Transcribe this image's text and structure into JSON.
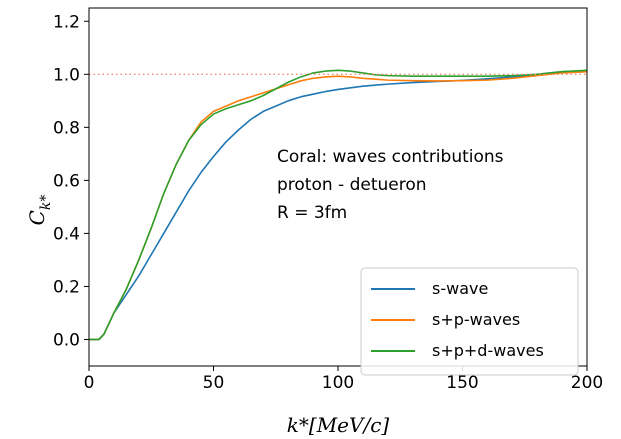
{
  "chart_data": {
    "type": "line",
    "xlabel": "k*[MeV/c]",
    "ylabel_main": "C",
    "ylabel_sub": "k*",
    "xlim": [
      0,
      200
    ],
    "ylim": [
      -0.1,
      1.25
    ],
    "xticks": [
      0,
      50,
      100,
      150,
      200
    ],
    "xtick_labels": [
      "0",
      "50",
      "100",
      "150",
      "200"
    ],
    "yticks": [
      0.0,
      0.2,
      0.4,
      0.6,
      0.8,
      1.0,
      1.2
    ],
    "ytick_labels": [
      "0.0",
      "0.2",
      "0.4",
      "0.6",
      "0.8",
      "1.0",
      "1.2"
    ],
    "grid": false,
    "legend_position": "lower-right",
    "annotation_lines": [
      "Coral: waves contributions",
      "proton - detueron",
      "R = 3fm"
    ],
    "reference_line": {
      "y": 1.0,
      "color": "#f08a70",
      "style": "dotted"
    },
    "series": [
      {
        "name": "s-wave",
        "color": "#1f77b4",
        "x": [
          0,
          4,
          6,
          8,
          10,
          15,
          20,
          25,
          30,
          35,
          40,
          45,
          50,
          55,
          60,
          65,
          70,
          75,
          80,
          85,
          90,
          95,
          100,
          110,
          120,
          130,
          140,
          150,
          160,
          170,
          180,
          190,
          200
        ],
        "y": [
          0.0,
          0.0,
          0.02,
          0.06,
          0.1,
          0.17,
          0.24,
          0.32,
          0.4,
          0.48,
          0.56,
          0.63,
          0.69,
          0.745,
          0.79,
          0.83,
          0.86,
          0.88,
          0.9,
          0.915,
          0.925,
          0.935,
          0.943,
          0.955,
          0.963,
          0.969,
          0.973,
          0.977,
          0.983,
          0.99,
          1.0,
          1.01,
          1.013
        ]
      },
      {
        "name": "s+p-waves",
        "color": "#ff7f0e",
        "x": [
          0,
          4,
          6,
          8,
          10,
          15,
          20,
          25,
          30,
          35,
          40,
          45,
          50,
          55,
          60,
          65,
          70,
          75,
          80,
          85,
          90,
          95,
          100,
          105,
          110,
          120,
          130,
          140,
          150,
          160,
          170,
          180,
          190,
          200
        ],
        "y": [
          0.0,
          0.0,
          0.02,
          0.06,
          0.1,
          0.19,
          0.3,
          0.42,
          0.55,
          0.66,
          0.75,
          0.82,
          0.86,
          0.88,
          0.9,
          0.915,
          0.93,
          0.945,
          0.96,
          0.975,
          0.985,
          0.99,
          0.993,
          0.99,
          0.985,
          0.978,
          0.976,
          0.975,
          0.976,
          0.978,
          0.985,
          0.995,
          1.005,
          1.01
        ]
      },
      {
        "name": "s+p+d-waves",
        "color": "#2ca02c",
        "x": [
          0,
          4,
          6,
          8,
          10,
          15,
          20,
          25,
          30,
          35,
          40,
          45,
          50,
          55,
          60,
          65,
          70,
          75,
          80,
          85,
          90,
          95,
          100,
          105,
          110,
          115,
          120,
          130,
          140,
          150,
          160,
          170,
          180,
          190,
          200
        ],
        "y": [
          0.0,
          0.0,
          0.02,
          0.06,
          0.1,
          0.19,
          0.3,
          0.42,
          0.55,
          0.66,
          0.75,
          0.81,
          0.85,
          0.87,
          0.885,
          0.9,
          0.92,
          0.945,
          0.97,
          0.99,
          1.005,
          1.012,
          1.015,
          1.012,
          1.005,
          0.998,
          0.995,
          0.993,
          0.993,
          0.993,
          0.993,
          0.995,
          1.0,
          1.01,
          1.015
        ]
      }
    ]
  }
}
